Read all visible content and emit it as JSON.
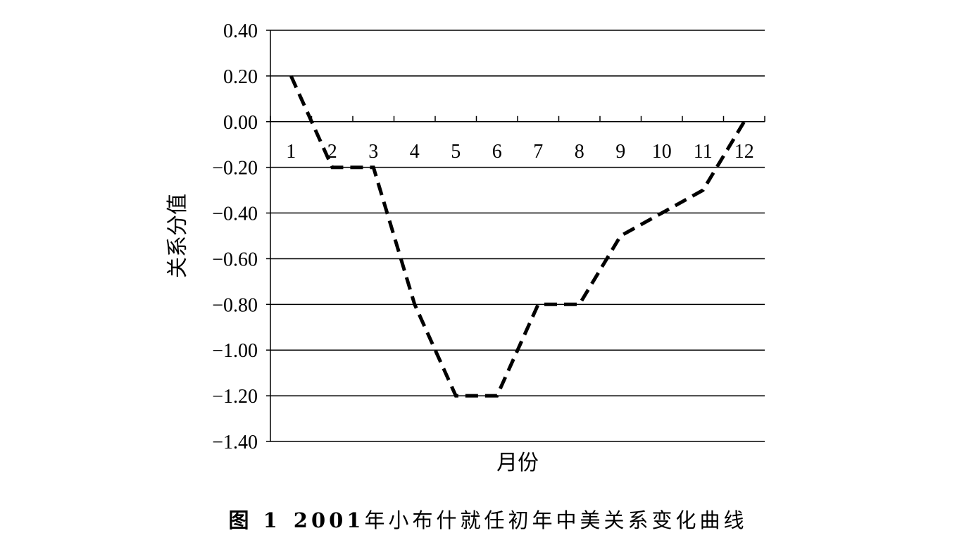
{
  "chart_data": {
    "type": "line",
    "title": "",
    "xlabel": "月份",
    "ylabel": "关系分值",
    "categories": [
      "1",
      "2",
      "3",
      "4",
      "5",
      "6",
      "7",
      "8",
      "9",
      "10",
      "11",
      "12"
    ],
    "series": [
      {
        "values": [
          0.2,
          -0.2,
          -0.2,
          -0.8,
          -1.2,
          -1.2,
          -0.8,
          -0.8,
          -0.5,
          -0.4,
          -0.3,
          0.0
        ],
        "style": "dashed",
        "color": "#000000"
      }
    ],
    "ylim": [
      -1.4,
      0.4
    ],
    "yticks": [
      "0.40",
      "0.20",
      "0.00",
      "-0.20",
      "-0.40",
      "-0.60",
      "-0.80",
      "-1.00",
      "-1.20",
      "-1.40"
    ],
    "grid": true,
    "legend": "none"
  },
  "caption": {
    "figure_label": "图 1",
    "year": "2001",
    "text": "年小布什就任初年中美关系变化曲线"
  }
}
